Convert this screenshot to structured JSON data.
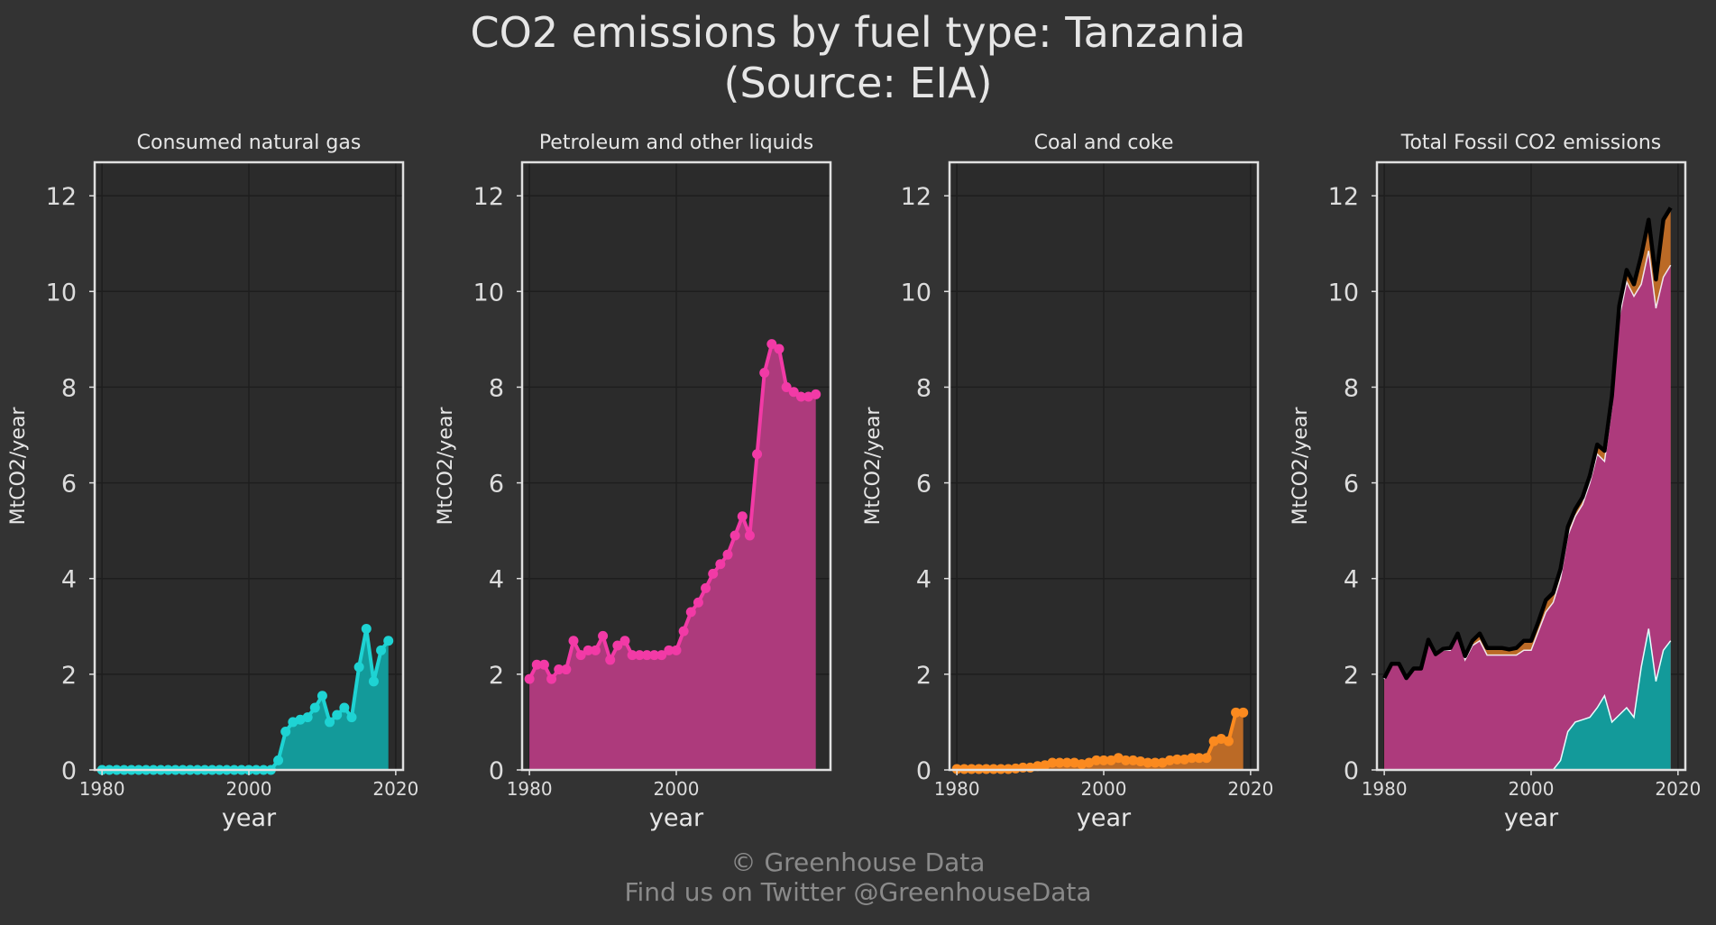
{
  "title_line1": "CO2 emissions by fuel type: Tanzania",
  "title_line2": "(Source: EIA)",
  "footer_line1": "© Greenhouse Data",
  "footer_line2": "Find us on Twitter @GreenhouseData",
  "colors": {
    "background": "#333333",
    "plot_bg": "#2b2b2b",
    "grid": "#1e1e1e",
    "frame": "#e0e0e0",
    "natural_gas": "#1ed3d3",
    "natural_gas_fill": "#139a9a",
    "petroleum": "#f23aa6",
    "petroleum_fill": "#ad3a7c",
    "coal": "#fb8a1f",
    "coal_fill": "#bb6a26",
    "total_line": "#000000"
  },
  "chart_data": [
    {
      "type": "area",
      "title": "Consumed natural gas",
      "xlabel": "year",
      "ylabel": "MtCO2/year",
      "xlim": [
        1979,
        2021
      ],
      "ylim": [
        0,
        12.7
      ],
      "xticks": [
        1980,
        2000,
        2020
      ],
      "yticks": [
        0,
        2,
        4,
        6,
        8,
        10,
        12
      ],
      "grid": true,
      "x": [
        1980,
        1981,
        1982,
        1983,
        1984,
        1985,
        1986,
        1987,
        1988,
        1989,
        1990,
        1991,
        1992,
        1993,
        1994,
        1995,
        1996,
        1997,
        1998,
        1999,
        2000,
        2001,
        2002,
        2003,
        2004,
        2005,
        2006,
        2007,
        2008,
        2009,
        2010,
        2011,
        2012,
        2013,
        2014,
        2015,
        2016,
        2017,
        2018,
        2019
      ],
      "values": [
        0,
        0,
        0,
        0,
        0,
        0,
        0,
        0,
        0,
        0,
        0,
        0,
        0,
        0,
        0,
        0,
        0,
        0,
        0,
        0,
        0,
        0,
        0,
        0,
        0.2,
        0.8,
        1.0,
        1.05,
        1.1,
        1.3,
        1.55,
        1.0,
        1.15,
        1.3,
        1.1,
        2.15,
        2.95,
        1.85,
        2.5,
        2.7
      ],
      "series_color_key": "natural_gas",
      "markers": true
    },
    {
      "type": "area",
      "title": "Petroleum and other liquids",
      "xlabel": "year",
      "ylabel": "MtCO2/year",
      "xlim": [
        1979,
        2021
      ],
      "ylim": [
        0,
        12.7
      ],
      "xticks": [
        1980,
        2000
      ],
      "yticks": [
        0,
        2,
        4,
        6,
        8,
        10,
        12
      ],
      "grid": true,
      "x": [
        1980,
        1981,
        1982,
        1983,
        1984,
        1985,
        1986,
        1987,
        1988,
        1989,
        1990,
        1991,
        1992,
        1993,
        1994,
        1995,
        1996,
        1997,
        1998,
        1999,
        2000,
        2001,
        2002,
        2003,
        2004,
        2005,
        2006,
        2007,
        2008,
        2009,
        2010,
        2011,
        2012,
        2013,
        2014,
        2015,
        2016,
        2017,
        2018,
        2019
      ],
      "values": [
        1.9,
        2.2,
        2.2,
        1.9,
        2.1,
        2.1,
        2.7,
        2.4,
        2.5,
        2.5,
        2.8,
        2.3,
        2.6,
        2.7,
        2.4,
        2.4,
        2.4,
        2.4,
        2.4,
        2.5,
        2.5,
        2.9,
        3.3,
        3.5,
        3.8,
        4.1,
        4.3,
        4.5,
        4.9,
        5.3,
        4.9,
        6.6,
        8.3,
        8.9,
        8.8,
        8.0,
        7.9,
        7.8,
        7.8,
        7.85
      ],
      "series_color_key": "petroleum",
      "markers": true
    },
    {
      "type": "area",
      "title": "Coal and coke",
      "xlabel": "year",
      "ylabel": "MtCO2/year",
      "xlim": [
        1979,
        2021
      ],
      "ylim": [
        0,
        12.7
      ],
      "xticks": [
        1980,
        2000,
        2020
      ],
      "yticks": [
        0,
        2,
        4,
        6,
        8,
        10,
        12
      ],
      "grid": true,
      "x": [
        1980,
        1981,
        1982,
        1983,
        1984,
        1985,
        1986,
        1987,
        1988,
        1989,
        1990,
        1991,
        1992,
        1993,
        1994,
        1995,
        1996,
        1997,
        1998,
        1999,
        2000,
        2001,
        2002,
        2003,
        2004,
        2005,
        2006,
        2007,
        2008,
        2009,
        2010,
        2011,
        2012,
        2013,
        2014,
        2015,
        2016,
        2017,
        2018,
        2019
      ],
      "values": [
        0.02,
        0.02,
        0.02,
        0.02,
        0.02,
        0.02,
        0.02,
        0.02,
        0.03,
        0.05,
        0.05,
        0.08,
        0.1,
        0.15,
        0.15,
        0.15,
        0.15,
        0.12,
        0.15,
        0.2,
        0.2,
        0.2,
        0.25,
        0.2,
        0.2,
        0.18,
        0.15,
        0.15,
        0.15,
        0.2,
        0.22,
        0.22,
        0.25,
        0.25,
        0.25,
        0.6,
        0.65,
        0.6,
        1.2,
        1.2
      ],
      "series_color_key": "coal",
      "markers": true
    },
    {
      "type": "area",
      "title": "Total Fossil CO2 emissions",
      "xlabel": "year",
      "ylabel": "MtCO2/year",
      "xlim": [
        1979,
        2021
      ],
      "ylim": [
        0,
        12.7
      ],
      "xticks": [
        1980,
        2000,
        2020
      ],
      "yticks": [
        0,
        2,
        4,
        6,
        8,
        10,
        12
      ],
      "grid": true,
      "stacked": true,
      "x": [
        1980,
        1981,
        1982,
        1983,
        1984,
        1985,
        1986,
        1987,
        1988,
        1989,
        1990,
        1991,
        1992,
        1993,
        1994,
        1995,
        1996,
        1997,
        1998,
        1999,
        2000,
        2001,
        2002,
        2003,
        2004,
        2005,
        2006,
        2007,
        2008,
        2009,
        2010,
        2011,
        2012,
        2013,
        2014,
        2015,
        2016,
        2017,
        2018,
        2019
      ],
      "series_keys": [
        "natural_gas",
        "petroleum",
        "coal"
      ],
      "total_line": true
    }
  ]
}
